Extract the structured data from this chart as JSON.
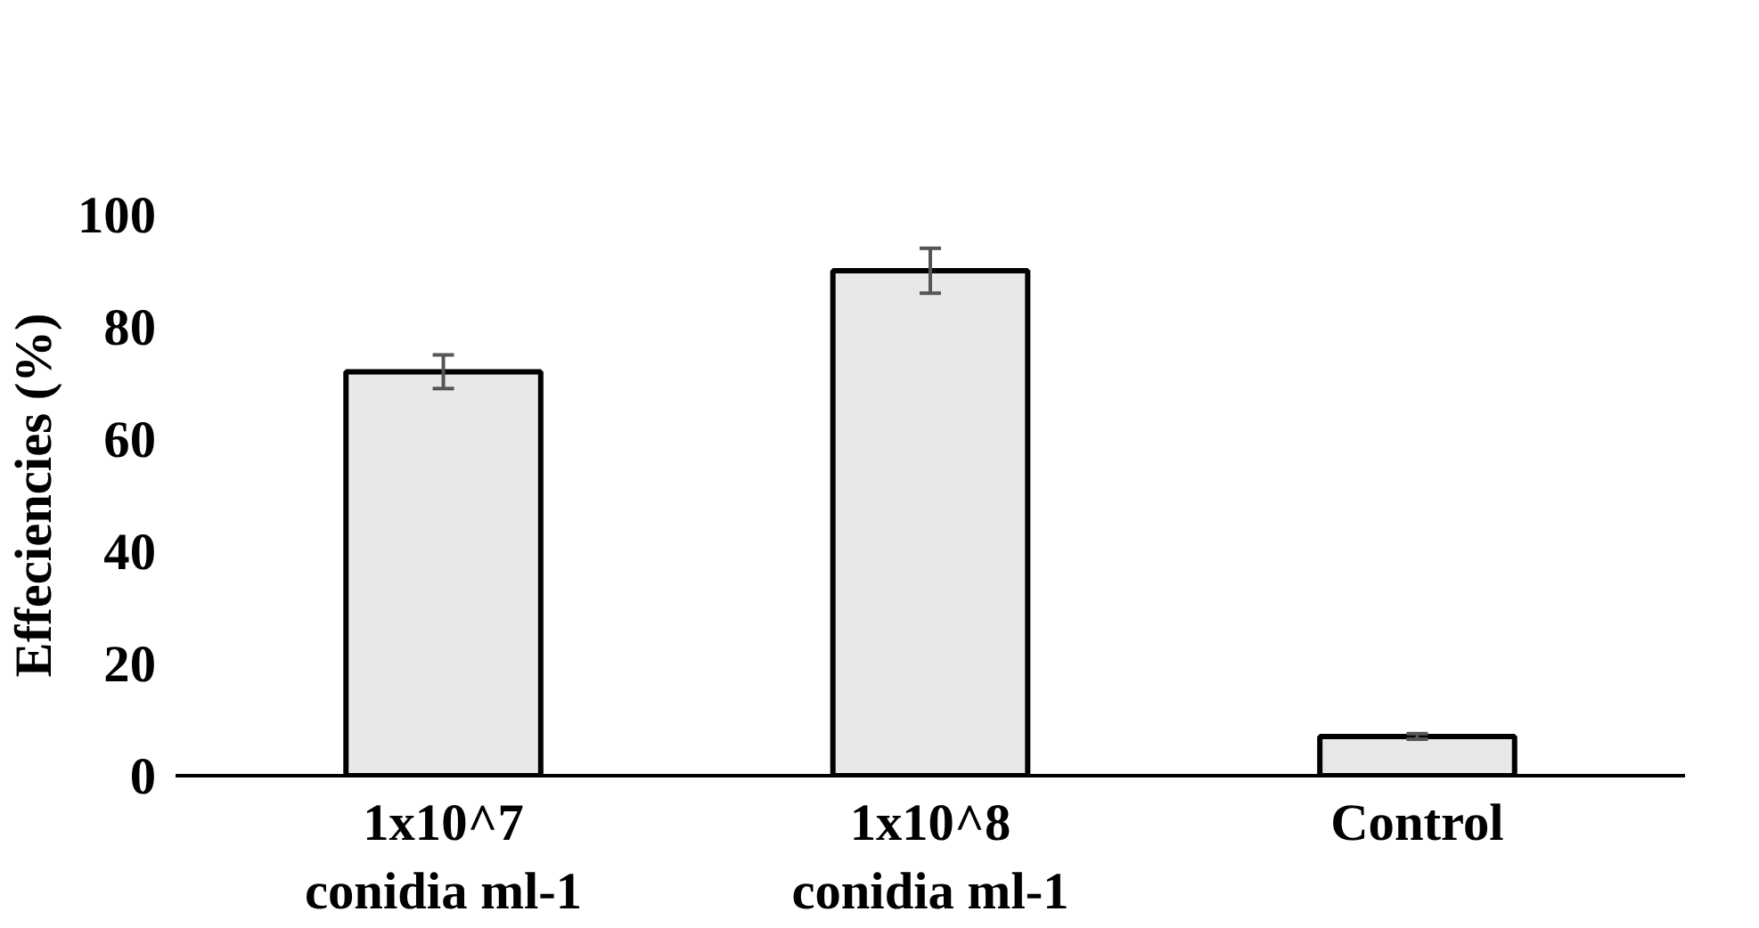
{
  "chart_data": {
    "type": "bar",
    "ylabel": "Effeciencies (%)",
    "categories": [
      "1x10^7\nconidia ml-1",
      "1x10^8\nconidia ml-1",
      "Control"
    ],
    "values": [
      72,
      90,
      7
    ],
    "errors": [
      3,
      4,
      0.5
    ],
    "color": "#e8e8e8",
    "ylim": [
      0,
      100
    ],
    "yticks": [
      0,
      20,
      40,
      60,
      80,
      100
    ],
    "grid": false
  }
}
